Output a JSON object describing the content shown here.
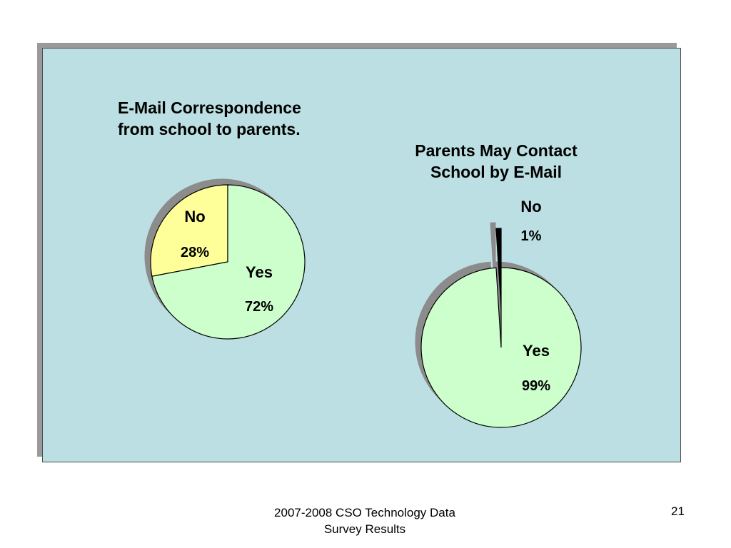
{
  "chart_data": [
    {
      "type": "pie",
      "title": [
        "E-Mail Correspondence",
        "from school to parents."
      ],
      "slices": [
        {
          "label": "No",
          "value": 28,
          "display": "28%",
          "color": "#ffff99"
        },
        {
          "label": "Yes",
          "value": 72,
          "display": "72%",
          "color": "#ccffcc"
        }
      ]
    },
    {
      "type": "pie",
      "title": [
        "Parents May Contact",
        "School by E-Mail"
      ],
      "slices": [
        {
          "label": "No",
          "value": 1,
          "display": "1%",
          "color": "#000000"
        },
        {
          "label": "Yes",
          "value": 99,
          "display": "99%",
          "color": "#ccffcc"
        }
      ]
    }
  ],
  "footer": {
    "line1": "2007-2008 CSO Technology Data",
    "line2": "Survey Results",
    "page_number": "21"
  }
}
